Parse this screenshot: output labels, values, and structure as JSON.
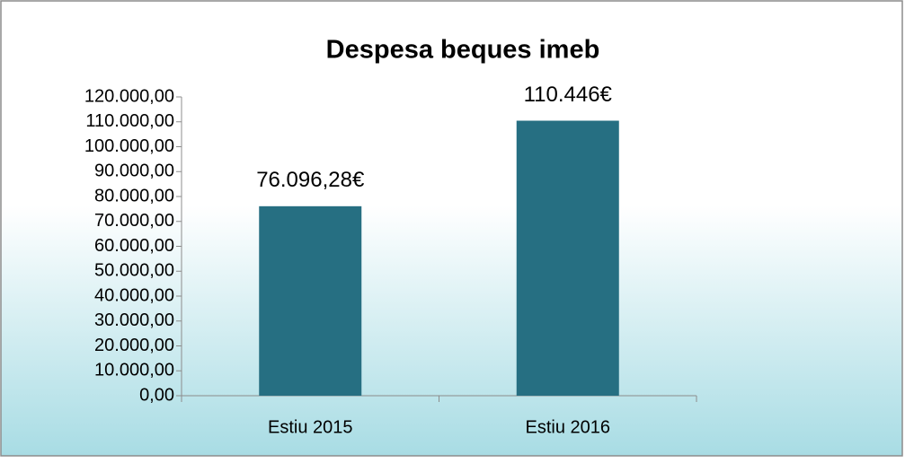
{
  "chart_data": {
    "type": "bar",
    "title": "Despesa beques imeb",
    "categories": [
      "Estiu 2015",
      "Estiu 2016"
    ],
    "values": [
      76096.28,
      110446
    ],
    "value_labels": [
      "76.096,28€",
      "110.446€"
    ],
    "color": "#266f82",
    "ylim": [
      0,
      120000
    ],
    "yticks": [
      {
        "value": 0,
        "label": "0,00"
      },
      {
        "value": 10000,
        "label": "10.000,00"
      },
      {
        "value": 20000,
        "label": "20.000,00"
      },
      {
        "value": 30000,
        "label": "30.000,00"
      },
      {
        "value": 40000,
        "label": "40.000,00"
      },
      {
        "value": 50000,
        "label": "50.000,00"
      },
      {
        "value": 60000,
        "label": "60.000,00"
      },
      {
        "value": 70000,
        "label": "70.000,00"
      },
      {
        "value": 80000,
        "label": "80.000,00"
      },
      {
        "value": 90000,
        "label": "90.000,00"
      },
      {
        "value": 100000,
        "label": "100.000,00"
      },
      {
        "value": 110000,
        "label": "110.000,00"
      },
      {
        "value": 120000,
        "label": "120.000,00"
      }
    ],
    "grid": false
  }
}
